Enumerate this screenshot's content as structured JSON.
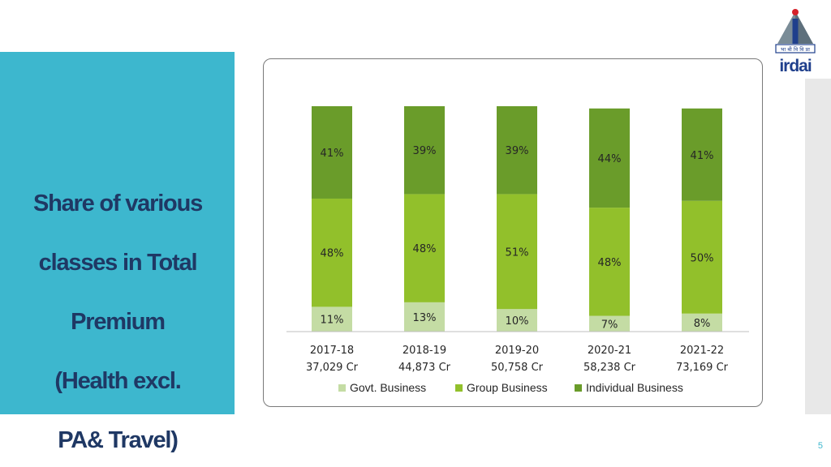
{
  "slide": {
    "title_lines": [
      "Share of various",
      "classes in Total",
      "Premium",
      "(Health excl.",
      "PA& Travel)"
    ],
    "page_number": "5",
    "logo_text": "irdai",
    "logo_hindi": "भा बी वि वि प्रा"
  },
  "colors": {
    "panel": "#3DB7CE",
    "title": "#1F3864",
    "govt": "#C4DCA4",
    "group": "#92C02B",
    "individual": "#6A9C2A"
  },
  "chart_data": {
    "type": "bar",
    "stacked": true,
    "percent": true,
    "categories": [
      "2017-18",
      "2018-19",
      "2019-20",
      "2020-21",
      "2021-22"
    ],
    "category_totals": [
      "37,029 Cr",
      "44,873 Cr",
      "50,758 Cr",
      "58,238 Cr",
      "73,169 Cr"
    ],
    "series": [
      {
        "name": "Govt. Business",
        "values": [
          11,
          13,
          10,
          7,
          8
        ],
        "labels": [
          "11%",
          "13%",
          "10%",
          "7%",
          "8%"
        ],
        "color": "#C4DCA4"
      },
      {
        "name": "Group Business",
        "values": [
          48,
          48,
          51,
          48,
          50
        ],
        "labels": [
          "48%",
          "48%",
          "51%",
          "48%",
          "50%"
        ],
        "color": "#92C02B"
      },
      {
        "name": "Individual Business",
        "values": [
          41,
          39,
          39,
          44,
          41
        ],
        "labels": [
          "41%",
          "39%",
          "39%",
          "44%",
          "41%"
        ],
        "color": "#6A9C2A"
      }
    ],
    "ylim": [
      0,
      100
    ],
    "grid": false,
    "legend_position": "bottom"
  }
}
